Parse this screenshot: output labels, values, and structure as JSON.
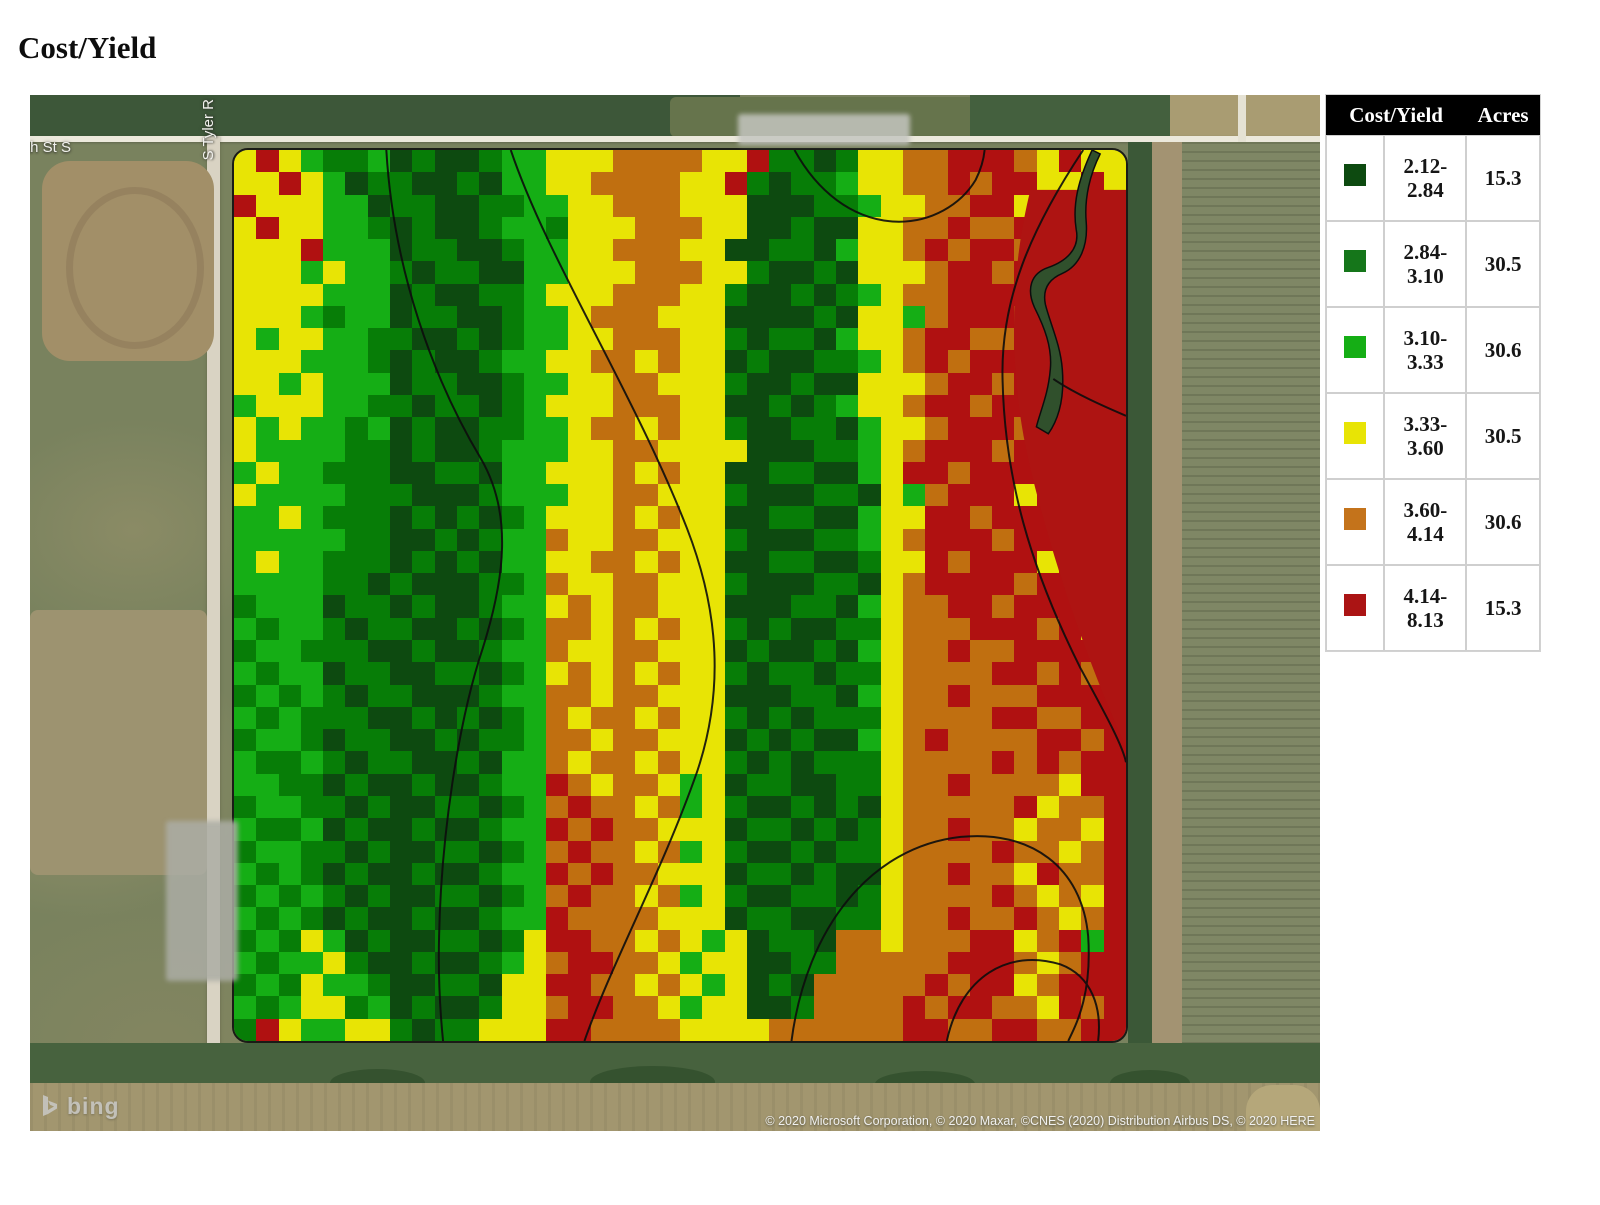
{
  "page": {
    "title": "Cost/Yield"
  },
  "legend": {
    "headers": [
      "Cost/Yield",
      "Acres"
    ],
    "rows": [
      {
        "color": "#0d4a10",
        "range": "2.12-2.84",
        "acres": "15.3"
      },
      {
        "color": "#15761a",
        "range": "2.84-3.10",
        "acres": "30.5"
      },
      {
        "color": "#15ae15",
        "range": "3.10-3.33",
        "acres": "30.6"
      },
      {
        "color": "#e8e405",
        "range": "3.33-3.60",
        "acres": "30.5"
      },
      {
        "color": "#c4731b",
        "range": "3.60-4.14",
        "acres": "30.6"
      },
      {
        "color": "#ab1414",
        "range": "4.14-8.13",
        "acres": "15.3"
      }
    ]
  },
  "map": {
    "street_label_horizontal": "th St S",
    "street_label_vertical": "S Tyler R",
    "logo_text": "bing",
    "attribution": "© 2020 Microsoft Corporation, © 2020 Maxar, ©CNES (2020) Distribution Airbus DS, © 2020 HERE"
  },
  "chart_data": {
    "type": "heatmap",
    "title": "Cost/Yield",
    "legend_position": "top-right",
    "classes": [
      {
        "label": "2.12-2.84",
        "acres": 15.3,
        "color": "#0d4a10"
      },
      {
        "label": "2.84-3.10",
        "acres": 30.5,
        "color": "#15761a"
      },
      {
        "label": "3.10-3.33",
        "acres": 30.6,
        "color": "#15ae15"
      },
      {
        "label": "3.33-3.60",
        "acres": 30.5,
        "color": "#e8e405"
      },
      {
        "label": "3.60-4.14",
        "acres": 30.6,
        "color": "#c4731b"
      },
      {
        "label": "4.14-8.13",
        "acres": 15.3,
        "color": "#ab1414"
      }
    ],
    "palette": [
      "#0d4a10",
      "#077d07",
      "#15ae15",
      "#e8e405",
      "#c06f10",
      "#b01111"
    ],
    "grid_size": {
      "cols": 40,
      "rows": 40
    },
    "grid_rows": [
      "3532112010012233344443351101334455543533",
      "3353201100102233444433510112334454553353",
      "5333220110011223344433300011233445535543",
      "3533221010012213334443300100334454455554",
      "3335222011001223344433001102334545545555",
      "3332322101100223334443310010333455455545",
      "3333222010011233344433100101234455554555",
      "3332122011001223444333000010332455545555",
      "3233221100101223344433101102334554455554",
      "3332221010012233443433010011234545555455",
      "3323222011001223344333100100333455455555",
      "2333221101101233344433001012334554555545",
      "3232212010011223443433100110233455545555",
      "3222211010012223344333300011234555455535",
      "2322111001102233343433001100235545553555",
      "3222211100012223344333100011032455535545",
      "2232111010101233343433001100233554555355",
      "2222211001012243344333100011234555455555",
      "2322111010102233443433001100133545553555",
      "2222110100011243344333100011034555545535",
      "1222011010012234344333000110234455455555",
      "2122101100101244343433101001134445554535",
      "1221110010012243344333010010234454455555",
      "2122011001101234343433101101134444554545",
      "1212101100012244344333000110234454445555",
      "2121110010101243443433101011134444554455",
      "1221011001011244344333010100234544445545",
      "2112101100102243443433101011134444545455",
      "2211010010012254344323011001134454444355",
      "1221101001101245443423100101034444453445",
      "2112010010012254544333011010134454434435",
      "1221101001101245443423100101134444544345",
      "2121010010012254544333011010034454435445",
      "1212101001101245443423100110134444543435",
      "2121010010012254444333011001134454454345",
      "1213201001101355443432301104434445534525",
      "2122310010012345544323300114444455543455",
      "1213221001103355443432301044444545534555",
      "2123312010013345544323300144445455443545",
      "1532233101133355444433334444445544554455"
    ]
  }
}
